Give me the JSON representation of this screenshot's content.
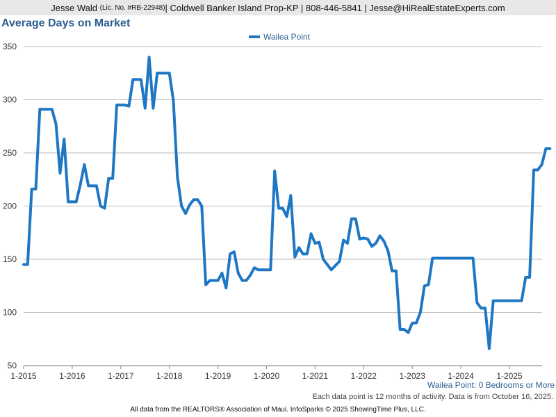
{
  "header": {
    "name": "Jesse Wald",
    "license": "(Lic. No. #RB-22948)",
    "rest": " | Coldwell Banker Island Prop-KP | 808-446-5841 | Jesse@HiRealEstateExperts.com"
  },
  "colors": {
    "series": "#1f77c4",
    "title": "#2b5e8f",
    "grid": "#bbbbbb"
  },
  "chart_data": {
    "type": "line",
    "title": "Average Days on Market",
    "xlabel": "",
    "ylabel": "",
    "x_ticks": [
      "1-2015",
      "1-2016",
      "1-2017",
      "1-2018",
      "1-2019",
      "1-2020",
      "1-2021",
      "1-2022",
      "1-2023",
      "1-2024",
      "1-2025"
    ],
    "y_ticks": [
      50,
      100,
      150,
      200,
      250,
      300,
      350
    ],
    "ylim": [
      50,
      360
    ],
    "xlim": [
      "2015-01",
      "2025-10"
    ],
    "grid": "horizontal",
    "legend_position": "top-center",
    "series": [
      {
        "name": "Wailea Point",
        "points": [
          [
            "2015-01",
            145
          ],
          [
            "2015-02",
            145
          ],
          [
            "2015-03",
            216
          ],
          [
            "2015-04",
            216
          ],
          [
            "2015-05",
            291
          ],
          [
            "2015-06",
            291
          ],
          [
            "2015-07",
            291
          ],
          [
            "2015-08",
            291
          ],
          [
            "2015-09",
            277
          ],
          [
            "2015-10",
            231
          ],
          [
            "2015-11",
            263
          ],
          [
            "2015-12",
            204
          ],
          [
            "2016-01",
            204
          ],
          [
            "2016-02",
            204
          ],
          [
            "2016-03",
            220
          ],
          [
            "2016-04",
            239
          ],
          [
            "2016-05",
            219
          ],
          [
            "2016-06",
            219
          ],
          [
            "2016-07",
            219
          ],
          [
            "2016-08",
            200
          ],
          [
            "2016-09",
            198
          ],
          [
            "2016-10",
            226
          ],
          [
            "2016-11",
            226
          ],
          [
            "2016-12",
            295
          ],
          [
            "2017-01",
            295
          ],
          [
            "2017-02",
            295
          ],
          [
            "2017-03",
            294
          ],
          [
            "2017-04",
            319
          ],
          [
            "2017-05",
            319
          ],
          [
            "2017-06",
            319
          ],
          [
            "2017-07",
            292
          ],
          [
            "2017-08",
            340
          ],
          [
            "2017-09",
            292
          ],
          [
            "2017-10",
            325
          ],
          [
            "2017-11",
            325
          ],
          [
            "2017-12",
            325
          ],
          [
            "2018-01",
            325
          ],
          [
            "2018-02",
            299
          ],
          [
            "2018-03",
            227
          ],
          [
            "2018-04",
            200
          ],
          [
            "2018-05",
            193
          ],
          [
            "2018-06",
            201
          ],
          [
            "2018-07",
            206
          ],
          [
            "2018-08",
            206
          ],
          [
            "2018-09",
            200
          ],
          [
            "2018-10",
            126
          ],
          [
            "2018-11",
            130
          ],
          [
            "2018-12",
            130
          ],
          [
            "2019-01",
            130
          ],
          [
            "2019-02",
            137
          ],
          [
            "2019-03",
            123
          ],
          [
            "2019-04",
            155
          ],
          [
            "2019-05",
            157
          ],
          [
            "2019-06",
            137
          ],
          [
            "2019-07",
            130
          ],
          [
            "2019-08",
            130
          ],
          [
            "2019-09",
            135
          ],
          [
            "2019-10",
            142
          ],
          [
            "2019-11",
            140
          ],
          [
            "2019-12",
            140
          ],
          [
            "2020-01",
            140
          ],
          [
            "2020-02",
            140
          ],
          [
            "2020-03",
            233
          ],
          [
            "2020-04",
            198
          ],
          [
            "2020-05",
            198
          ],
          [
            "2020-06",
            190
          ],
          [
            "2020-07",
            210
          ],
          [
            "2020-08",
            152
          ],
          [
            "2020-09",
            161
          ],
          [
            "2020-10",
            155
          ],
          [
            "2020-11",
            155
          ],
          [
            "2020-12",
            174
          ],
          [
            "2021-01",
            165
          ],
          [
            "2021-02",
            166
          ],
          [
            "2021-03",
            150
          ],
          [
            "2021-04",
            145
          ],
          [
            "2021-05",
            140
          ],
          [
            "2021-06",
            144
          ],
          [
            "2021-07",
            148
          ],
          [
            "2021-08",
            168
          ],
          [
            "2021-09",
            165
          ],
          [
            "2021-10",
            188
          ],
          [
            "2021-11",
            188
          ],
          [
            "2021-12",
            169
          ],
          [
            "2022-01",
            170
          ],
          [
            "2022-02",
            169
          ],
          [
            "2022-03",
            162
          ],
          [
            "2022-04",
            165
          ],
          [
            "2022-05",
            172
          ],
          [
            "2022-06",
            167
          ],
          [
            "2022-07",
            158
          ],
          [
            "2022-08",
            139
          ],
          [
            "2022-09",
            139
          ],
          [
            "2022-10",
            84
          ],
          [
            "2022-11",
            84
          ],
          [
            "2022-12",
            81
          ],
          [
            "2023-01",
            90
          ],
          [
            "2023-02",
            90
          ],
          [
            "2023-03",
            100
          ],
          [
            "2023-04",
            125
          ],
          [
            "2023-05",
            126
          ],
          [
            "2023-06",
            151
          ],
          [
            "2023-07",
            151
          ],
          [
            "2023-08",
            151
          ],
          [
            "2023-09",
            151
          ],
          [
            "2023-10",
            151
          ],
          [
            "2023-11",
            151
          ],
          [
            "2023-12",
            151
          ],
          [
            "2024-01",
            151
          ],
          [
            "2024-02",
            151
          ],
          [
            "2024-03",
            151
          ],
          [
            "2024-04",
            151
          ],
          [
            "2024-05",
            109
          ],
          [
            "2024-06",
            104
          ],
          [
            "2024-07",
            104
          ],
          [
            "2024-08",
            66
          ],
          [
            "2024-09",
            111
          ],
          [
            "2024-10",
            111
          ],
          [
            "2024-11",
            111
          ],
          [
            "2024-12",
            111
          ],
          [
            "2025-01",
            111
          ],
          [
            "2025-02",
            111
          ],
          [
            "2025-03",
            111
          ],
          [
            "2025-04",
            111
          ],
          [
            "2025-05",
            133
          ],
          [
            "2025-06",
            133
          ],
          [
            "2025-07",
            234
          ],
          [
            "2025-08",
            234
          ],
          [
            "2025-09",
            239
          ],
          [
            "2025-10",
            254
          ],
          [
            "2025-11",
            254
          ]
        ]
      }
    ],
    "subtitle": "Wailea Point: 0 Bedrooms or More",
    "note": "Each data point is 12 months of activity. Data is from October 16, 2025."
  },
  "footer": "All data from the REALTORS® Association of Maui. InfoSparks © 2025 ShowingTime Plus, LLC."
}
